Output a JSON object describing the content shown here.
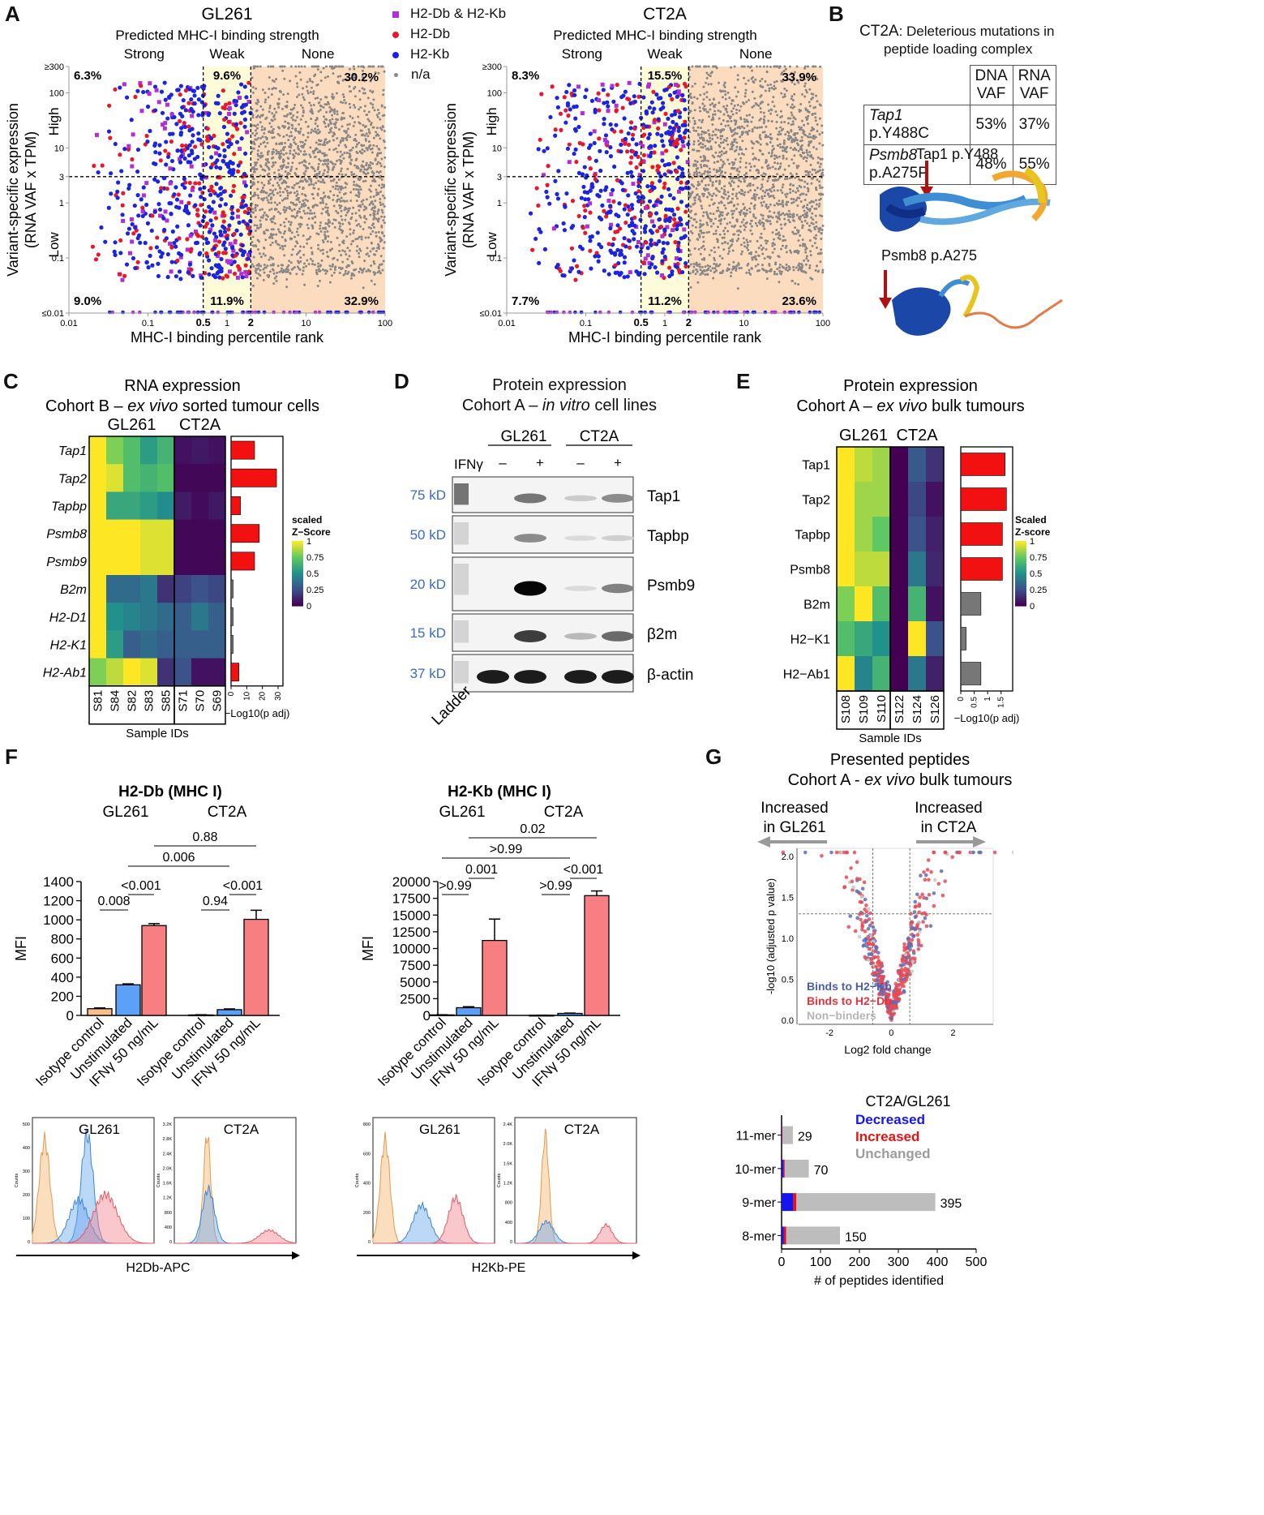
{
  "panels": {
    "a": "A",
    "b": "B",
    "c": "C",
    "d": "D",
    "e": "E",
    "f": "F",
    "g": "G"
  },
  "panel_a": {
    "legend": [
      {
        "label": "H2-Db & H2-Kb",
        "color": "#b22fd6",
        "marker": "square"
      },
      {
        "label": "H2-Db",
        "color": "#e8172b",
        "marker": "circle"
      },
      {
        "label": "H2-Kb",
        "color": "#1b25e0",
        "marker": "circle"
      },
      {
        "label": "n/a",
        "color": "#8a8a8a",
        "marker": "dot"
      }
    ],
    "ylabel1": "Variant-specific expression",
    "ylabel2": "(RNA VAF x TPM)",
    "xlabel": "MHC-I binding percentile rank",
    "subtitle": "Predicted MHC-I binding strength",
    "bands": [
      "Strong",
      "Weak",
      "None"
    ],
    "ylevels": [
      "High",
      "Low"
    ],
    "yticks": [
      "≥300",
      "100",
      "10",
      "3",
      "1",
      "0.1",
      "≤0.01"
    ],
    "xticks": [
      "0.01",
      "0.1",
      "0.5",
      "1",
      "2",
      "10",
      "100"
    ],
    "colors": {
      "weak_band": "#fefbd8",
      "none_band": "#fcdcbf"
    }
  },
  "chart_data": [
    {
      "type": "scatter",
      "title": "GL261",
      "xlabel": "MHC-I binding percentile rank",
      "ylabel": "Variant-specific expression (RNA VAF x TPM)",
      "x_scale": "log",
      "y_scale": "log",
      "xlim": [
        0.01,
        100
      ],
      "ylim": [
        0.01,
        300
      ],
      "thresholds": {
        "x": [
          0.5,
          2
        ],
        "y": 3
      },
      "quadrant_percent": {
        "strong_high": "6.3%",
        "weak_high": "9.6%",
        "none_high": "30.2%",
        "strong_low": "9.0%",
        "weak_low": "11.9%",
        "none_low": "32.9%"
      }
    },
    {
      "type": "scatter",
      "title": "CT2A",
      "xlabel": "MHC-I binding percentile rank",
      "ylabel": "Variant-specific expression (RNA VAF x TPM)",
      "x_scale": "log",
      "y_scale": "log",
      "xlim": [
        0.01,
        100
      ],
      "ylim": [
        0.01,
        300
      ],
      "thresholds": {
        "x": [
          0.5,
          2
        ],
        "y": 3
      },
      "quadrant_percent": {
        "strong_high": "8.3%",
        "weak_high": "15.5%",
        "none_high": "33.9%",
        "strong_low": "7.7%",
        "weak_low": "11.2%",
        "none_low": "23.6%"
      }
    },
    {
      "type": "heatmap",
      "title": "RNA expression",
      "subtitle_pre": "Cohort B – ",
      "subtitle_it": "ex vivo",
      "subtitle_post": " sorted tumour cells",
      "groups": [
        "GL261",
        "CT2A"
      ],
      "rows": [
        "Tap1",
        "Tap2",
        "Tapbp",
        "Psmb8",
        "Psmb9",
        "B2m",
        "H2-D1",
        "H2-K1",
        "H2-Ab1"
      ],
      "samples": [
        "S81",
        "S84",
        "S82",
        "S83",
        "S85",
        "S71",
        "S70",
        "S69"
      ],
      "values": [
        [
          1.0,
          0.8,
          0.7,
          0.55,
          0.65,
          0.05,
          0.07,
          0.05
        ],
        [
          1.0,
          0.95,
          0.7,
          0.65,
          0.7,
          0.02,
          0.02,
          0.02
        ],
        [
          1.0,
          0.6,
          0.6,
          0.55,
          0.48,
          0.08,
          0.03,
          0.07
        ],
        [
          1.0,
          1.0,
          1.0,
          0.95,
          0.95,
          0.02,
          0.02,
          0.02
        ],
        [
          1.0,
          1.0,
          1.0,
          0.95,
          0.95,
          0.02,
          0.02,
          0.02
        ],
        [
          1.0,
          0.35,
          0.35,
          0.4,
          0.15,
          0.2,
          0.25,
          0.22
        ],
        [
          1.0,
          0.5,
          0.45,
          0.4,
          0.35,
          0.3,
          0.4,
          0.3
        ],
        [
          1.0,
          0.55,
          0.3,
          0.35,
          0.3,
          0.3,
          0.3,
          0.3
        ],
        [
          0.8,
          0.9,
          1.0,
          0.95,
          0.15,
          0.25,
          0.05,
          0.05
        ]
      ],
      "bar_values": [
        15,
        29,
        6,
        18,
        15,
        1,
        1,
        1,
        5
      ],
      "bar_colors": [
        "red",
        "red",
        "red",
        "red",
        "red",
        "grey",
        "grey",
        "grey",
        "red"
      ],
      "bar_xticks": [
        "0",
        "10",
        "20",
        "30"
      ],
      "bar_xmax": 30,
      "bar_xlabel": "−Log10(p adj)",
      "legend_title": "scaled\nZ−Score",
      "legend_ticks": [
        "1",
        "0.75",
        "0.5",
        "0.25",
        "0"
      ],
      "xaxis_title": "Sample IDs"
    },
    {
      "type": "heatmap",
      "title": "Protein expression",
      "subtitle_pre": "Cohort A – ",
      "subtitle_it": "ex vivo",
      "subtitle_post": " bulk tumours",
      "groups": [
        "GL261",
        "CT2A"
      ],
      "rows": [
        "Tap1",
        "Tap2",
        "Tapbp",
        "Psmb8",
        "B2m",
        "H2−K1",
        "H2−Ab1"
      ],
      "samples": [
        "S108",
        "S109",
        "S110",
        "S122",
        "S124",
        "S126"
      ],
      "values": [
        [
          1.0,
          0.9,
          0.85,
          0.0,
          0.28,
          0.15
        ],
        [
          1.0,
          0.85,
          0.85,
          0.0,
          0.22,
          0.05
        ],
        [
          1.0,
          0.85,
          0.75,
          0.0,
          0.25,
          0.1
        ],
        [
          1.0,
          0.9,
          0.9,
          0.0,
          0.4,
          0.12
        ],
        [
          0.8,
          1.0,
          0.7,
          0.0,
          0.65,
          0.05
        ],
        [
          0.7,
          0.6,
          0.5,
          0.0,
          1.0,
          0.25
        ],
        [
          1.0,
          0.45,
          0.65,
          0.0,
          0.4,
          0.1
        ]
      ],
      "bar_values": [
        1.65,
        1.7,
        1.55,
        1.55,
        0.75,
        0.2,
        0.75
      ],
      "bar_colors": [
        "red",
        "red",
        "red",
        "red",
        "grey",
        "grey",
        "grey"
      ],
      "bar_xticks": [
        "0",
        "0.5",
        "1",
        "1.5"
      ],
      "bar_xmax": 1.75,
      "bar_xlabel": "−Log10(p adj)",
      "legend_title": "Scaled\nZ-score",
      "legend_ticks": [
        "1",
        "0.75",
        "0.5",
        "0.25",
        "0"
      ],
      "xaxis_title": "Sample IDs"
    },
    {
      "type": "bar",
      "title": "H2-Db (MHC I)",
      "groups": [
        "GL261",
        "CT2A"
      ],
      "categories": [
        "Isotype control",
        "Unstimulated",
        "IFNγ 50 ng/mL",
        "Isotype control",
        "Unstimulated",
        "IFNγ 50 ng/mL"
      ],
      "values": [
        70,
        320,
        940,
        5,
        60,
        1005
      ],
      "errors": [
        8,
        10,
        20,
        2,
        8,
        95
      ],
      "colors": [
        "#f8bf8d",
        "#5aa1f7",
        "#f77f82",
        "#f8bf8d",
        "#5aa1f7",
        "#f77f82"
      ],
      "ylabel": "MFI",
      "ylim": [
        0,
        1400
      ],
      "yticks": [
        "0",
        "200",
        "400",
        "600",
        "800",
        "1000",
        "1200",
        "1400"
      ],
      "pvalues": [
        "0.88",
        "0.006",
        "<0.001",
        "0.008",
        "0.94",
        "<0.001"
      ]
    },
    {
      "type": "bar",
      "title": "H2-Kb (MHC I)",
      "groups": [
        "GL261",
        "CT2A"
      ],
      "categories": [
        "Isotype control",
        "Unstimulated",
        "IFNγ 50 ng/mL",
        "Isotype control",
        "Unstimulated",
        "IFNγ 50 ng/mL"
      ],
      "values": [
        80,
        1150,
        11200,
        30,
        300,
        17900
      ],
      "errors": [
        20,
        150,
        3200,
        10,
        50,
        700
      ],
      "colors": [
        "#f8bf8d",
        "#5aa1f7",
        "#f77f82",
        "#f8bf8d",
        "#5aa1f7",
        "#f77f82"
      ],
      "ylabel": "MFI",
      "ylim": [
        0,
        20000
      ],
      "yticks": [
        "0",
        "2500",
        "5000",
        "7500",
        "10000",
        "12500",
        "15000",
        "17500",
        "20000"
      ],
      "pvalues": [
        "0.02",
        ">0.99",
        "0.001",
        ">0.99",
        ">0.99",
        "<0.001"
      ]
    },
    {
      "type": "scatter",
      "title": "Presented peptides",
      "subtitle_pre": "Cohort A - ",
      "subtitle_it": "ex vivo",
      "subtitle_post": " bulk tumours",
      "xlabel": "Log2 fold change",
      "ylabel": "-log10 (adjusted p value)",
      "xlim": [
        -3,
        3.3
      ],
      "ylim": [
        -0.05,
        2.1
      ],
      "xticks": [
        "-2",
        "0",
        "2"
      ],
      "yticks": [
        "0.0",
        "0.5",
        "1.0",
        "1.5",
        "2.0"
      ],
      "thresholds": {
        "x": [
          -0.6,
          0.6
        ],
        "y": 1.3
      },
      "legend": [
        "Binds to H2−Kb",
        "Binds to H2−Db",
        "Non−binders"
      ],
      "arrows": [
        "Increased in GL261",
        "Increased in CT2A"
      ]
    },
    {
      "type": "bar",
      "orientation": "horizontal",
      "title": "CT2A/GL261",
      "categories": [
        "11-mer",
        "10-mer",
        "9-mer",
        "8-mer"
      ],
      "series": [
        {
          "name": "Decreased",
          "values": [
            1,
            5,
            30,
            6
          ],
          "color": "#1515f0"
        },
        {
          "name": "Increased",
          "values": [
            1,
            3,
            8,
            6
          ],
          "color": "#ef1111"
        },
        {
          "name": "Unchanged",
          "values": [
            27,
            62,
            357,
            138
          ],
          "color": "#bdbdbd"
        }
      ],
      "totals": [
        "29",
        "70",
        "395",
        "150"
      ],
      "xlabel": "# of peptides identified",
      "xlim": [
        0,
        500
      ],
      "xticks": [
        "0",
        "100",
        "200",
        "300",
        "400",
        "500"
      ]
    }
  ],
  "panel_b": {
    "title_line1_prefix": "CT2A",
    "title_line1_rest": ": Deleterious mutations in",
    "title_line2": "peptide loading complex",
    "col_dna": "DNA",
    "col_rna": "RNA",
    "col_vaf": "VAF",
    "rows": [
      {
        "gene": "Tap1",
        "mut": " p.Y488C",
        "dna": "53%",
        "rna": "37%"
      },
      {
        "gene": "Psmb8",
        "mut": " p.A275P",
        "dna": "48%",
        "rna": "55%"
      }
    ],
    "struct1_label": "Tap1 p.Y488",
    "struct2_label": "Psmb8 p.A275"
  },
  "panel_d": {
    "title": "Protein expression",
    "subtitle_pre": "Cohort A – ",
    "subtitle_it": "in vitro",
    "subtitle_post": " cell lines",
    "groups": [
      "GL261",
      "CT2A"
    ],
    "treatment_label": "IFNγ",
    "treatment_signs": [
      "–",
      "+",
      "–",
      "+"
    ],
    "markers": [
      "75 kD",
      "50 kD",
      "20 kD",
      "15 kD",
      "37 kD"
    ],
    "proteins": [
      "Tap1",
      "Tapbp",
      "Psmb9",
      "β2m",
      "β-actin"
    ],
    "ladder": "Ladder",
    "marker_color": "#3b6bc4"
  },
  "panel_f": {
    "hist1": {
      "groups": [
        "GL261",
        "CT2A"
      ],
      "xlabel": "H2Db-APC",
      "yticks_left": [
        "500",
        "400",
        "300",
        "200",
        "100",
        "0"
      ],
      "yticks_right": [
        "3.2K",
        "2.8K",
        "2.4K",
        "2.0K",
        "1.6K",
        "1.2K",
        "800",
        "400",
        "0"
      ]
    },
    "hist2": {
      "groups": [
        "GL261",
        "CT2A"
      ],
      "xlabel": "H2Kb-PE",
      "yticks_left": [
        "800",
        "600",
        "400",
        "200",
        "0"
      ],
      "yticks_right": [
        "2.4K",
        "2.0K",
        "1.6K",
        "1.2K",
        "800",
        "400",
        "0"
      ]
    },
    "counts_label": "Counts"
  }
}
